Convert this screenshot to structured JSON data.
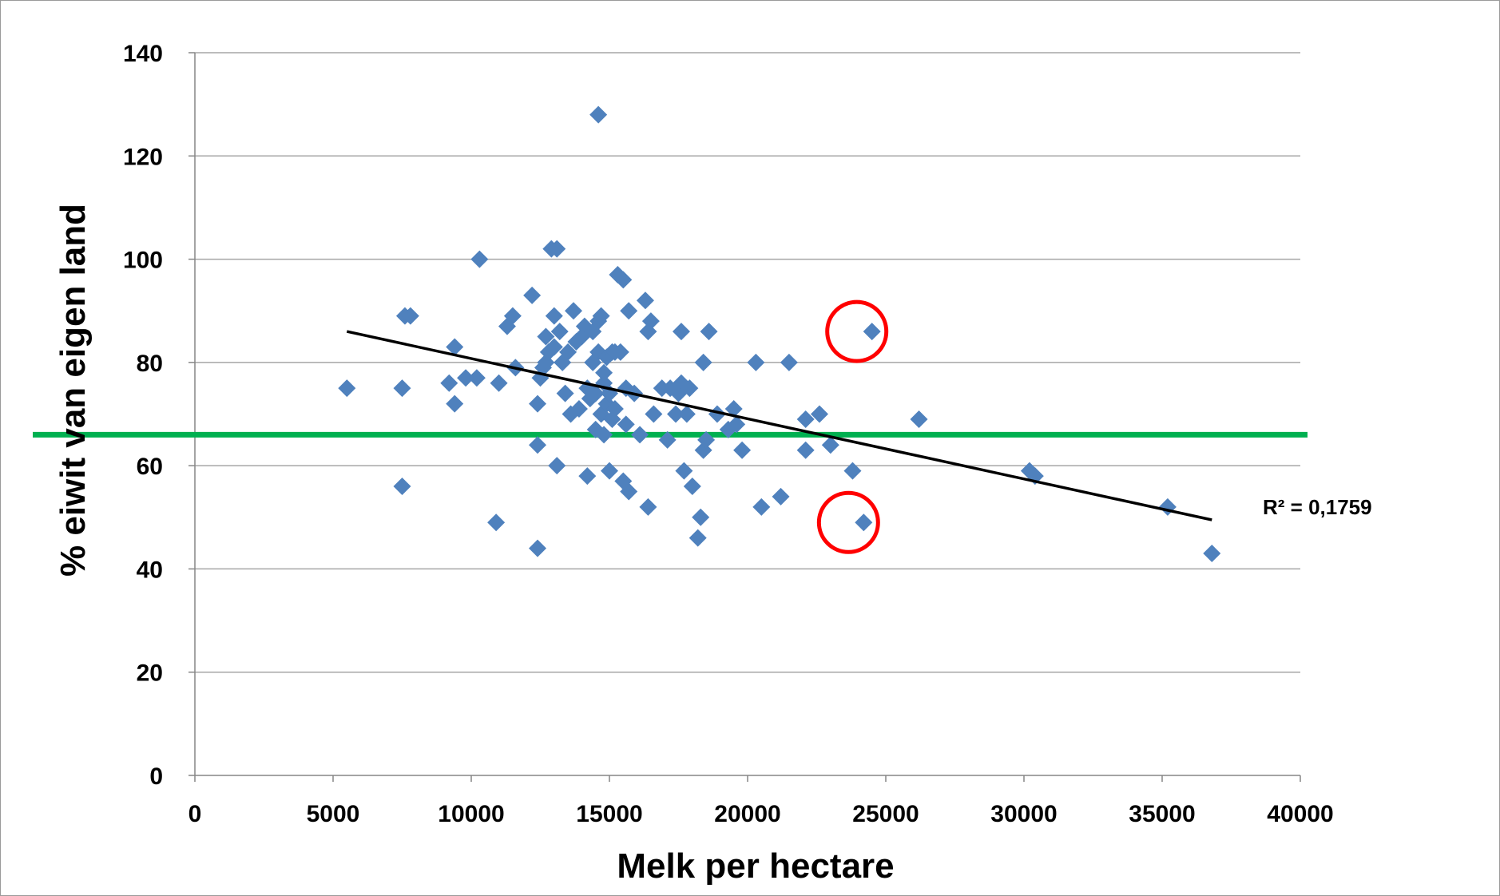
{
  "chart_data": {
    "type": "scatter",
    "title": "",
    "xlabel": "Melk per hectare",
    "ylabel": "% eiwit van eigen land",
    "xlim": [
      0,
      40000
    ],
    "ylim": [
      0,
      140
    ],
    "xticks": [
      0,
      5000,
      10000,
      15000,
      20000,
      25000,
      30000,
      35000,
      40000
    ],
    "yticks": [
      0,
      20,
      40,
      60,
      80,
      100,
      120,
      140
    ],
    "grid": "horizontal",
    "legend": "none",
    "marker_color": "#4F81BD",
    "trendline": {
      "type": "linear",
      "color": "#000000",
      "from": [
        5500,
        86
      ],
      "to": [
        36800,
        49.5
      ],
      "label": "R² = 0,1759"
    },
    "reference_line": {
      "y": 66,
      "color": "#00B050"
    },
    "highlighted_points": [
      [
        24500,
        86
      ],
      [
        24200,
        49
      ]
    ],
    "highlight_color": "#FF0000",
    "points": [
      [
        5500,
        75
      ],
      [
        7500,
        75
      ],
      [
        7500,
        56
      ],
      [
        7600,
        89
      ],
      [
        7800,
        89
      ],
      [
        9200,
        76
      ],
      [
        9400,
        72
      ],
      [
        9400,
        83
      ],
      [
        9800,
        77
      ],
      [
        10200,
        77
      ],
      [
        10300,
        100
      ],
      [
        10900,
        49
      ],
      [
        11000,
        76
      ],
      [
        11300,
        87
      ],
      [
        11500,
        89
      ],
      [
        11600,
        79
      ],
      [
        12200,
        93
      ],
      [
        12400,
        44
      ],
      [
        12400,
        72
      ],
      [
        12400,
        64
      ],
      [
        12500,
        77
      ],
      [
        12600,
        79
      ],
      [
        12700,
        80
      ],
      [
        12700,
        85
      ],
      [
        12800,
        82
      ],
      [
        12900,
        102
      ],
      [
        13000,
        89
      ],
      [
        13000,
        83
      ],
      [
        13100,
        102
      ],
      [
        13100,
        60
      ],
      [
        13200,
        86
      ],
      [
        13300,
        80
      ],
      [
        13400,
        74
      ],
      [
        13500,
        82
      ],
      [
        13600,
        70
      ],
      [
        13700,
        90
      ],
      [
        13800,
        84
      ],
      [
        13900,
        71
      ],
      [
        14000,
        85
      ],
      [
        14100,
        87
      ],
      [
        14200,
        75
      ],
      [
        14200,
        58
      ],
      [
        14300,
        73
      ],
      [
        14400,
        80
      ],
      [
        14400,
        86
      ],
      [
        14500,
        67
      ],
      [
        14500,
        74
      ],
      [
        14600,
        82
      ],
      [
        14600,
        88
      ],
      [
        14700,
        89
      ],
      [
        14600,
        128
      ],
      [
        14700,
        70
      ],
      [
        14800,
        66
      ],
      [
        14800,
        76
      ],
      [
        14800,
        78
      ],
      [
        14900,
        81
      ],
      [
        14900,
        72
      ],
      [
        15000,
        74
      ],
      [
        15000,
        59
      ],
      [
        15100,
        82
      ],
      [
        15100,
        69
      ],
      [
        15200,
        71
      ],
      [
        15200,
        82
      ],
      [
        15300,
        97
      ],
      [
        15400,
        82
      ],
      [
        15500,
        96
      ],
      [
        15500,
        57
      ],
      [
        15600,
        68
      ],
      [
        15600,
        75
      ],
      [
        15700,
        55
      ],
      [
        15700,
        90
      ],
      [
        15900,
        74
      ],
      [
        16100,
        66
      ],
      [
        16300,
        92
      ],
      [
        16400,
        52
      ],
      [
        16400,
        86
      ],
      [
        16500,
        88
      ],
      [
        16600,
        70
      ],
      [
        16900,
        75
      ],
      [
        17100,
        65
      ],
      [
        17200,
        75
      ],
      [
        17400,
        70
      ],
      [
        17500,
        74
      ],
      [
        17600,
        86
      ],
      [
        17600,
        76
      ],
      [
        17700,
        59
      ],
      [
        17800,
        70
      ],
      [
        17900,
        75
      ],
      [
        18000,
        56
      ],
      [
        18200,
        46
      ],
      [
        18300,
        50
      ],
      [
        18400,
        63
      ],
      [
        18400,
        80
      ],
      [
        18500,
        65
      ],
      [
        18600,
        86
      ],
      [
        18900,
        70
      ],
      [
        19300,
        67
      ],
      [
        19500,
        71
      ],
      [
        19600,
        68
      ],
      [
        19800,
        63
      ],
      [
        20300,
        80
      ],
      [
        20500,
        52
      ],
      [
        21200,
        54
      ],
      [
        21500,
        80
      ],
      [
        22100,
        69
      ],
      [
        22100,
        63
      ],
      [
        22600,
        70
      ],
      [
        23000,
        64
      ],
      [
        23800,
        59
      ],
      [
        24200,
        49
      ],
      [
        24500,
        86
      ],
      [
        26200,
        69
      ],
      [
        30200,
        59
      ],
      [
        30400,
        58
      ],
      [
        35200,
        52
      ],
      [
        36800,
        43
      ]
    ]
  }
}
